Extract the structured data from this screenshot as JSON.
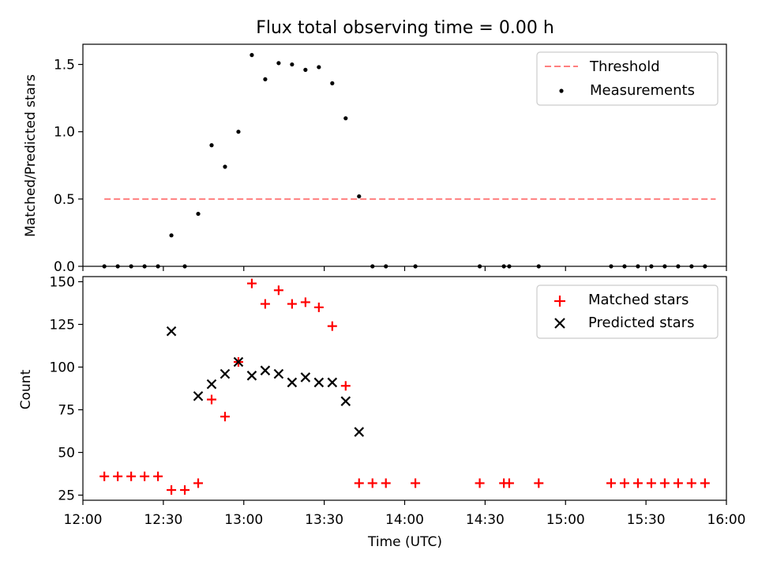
{
  "chart_data": [
    {
      "type": "scatter",
      "title": "Flux total observing time = 0.00 h",
      "xlabel": "",
      "ylabel": "Matched/Predicted stars",
      "xlim": [
        "12:00",
        "16:00"
      ],
      "ylim": [
        0,
        1.65
      ],
      "yticks": [
        "0.0",
        "0.5",
        "1.0",
        "1.5"
      ],
      "grid": false,
      "legend_position": "top-right",
      "series": [
        {
          "name": "Threshold",
          "kind": "line",
          "style": "dashed",
          "color": "#ff7f7f",
          "x": [
            "12:08",
            "15:56"
          ],
          "y": [
            0.5,
            0.5
          ]
        },
        {
          "name": "Measurements",
          "kind": "scatter",
          "marker": "dot",
          "color": "#000000",
          "x": [
            "12:08",
            "12:13",
            "12:18",
            "12:23",
            "12:28",
            "12:33",
            "12:38",
            "12:43",
            "12:48",
            "12:53",
            "12:58",
            "13:03",
            "13:08",
            "13:13",
            "13:18",
            "13:23",
            "13:28",
            "13:33",
            "13:38",
            "13:43",
            "13:48",
            "13:53",
            "14:04",
            "14:28",
            "14:37",
            "14:39",
            "14:50",
            "15:17",
            "15:22",
            "15:27",
            "15:32",
            "15:37",
            "15:42",
            "15:47",
            "15:52"
          ],
          "y": [
            0,
            0,
            0,
            0,
            0,
            0.23,
            0,
            0.39,
            0.9,
            0.74,
            1.0,
            1.57,
            1.39,
            1.51,
            1.5,
            1.46,
            1.48,
            1.36,
            1.1,
            0.52,
            0,
            0,
            0,
            0,
            0,
            0,
            0,
            0,
            0,
            0,
            0,
            0,
            0,
            0,
            0
          ]
        }
      ]
    },
    {
      "type": "scatter",
      "title": "",
      "xlabel": "Time (UTC)",
      "ylabel": "Count",
      "xlim": [
        "12:00",
        "16:00"
      ],
      "ylim": [
        22,
        153
      ],
      "xticks": [
        "12:00",
        "12:30",
        "13:00",
        "13:30",
        "14:00",
        "14:30",
        "15:00",
        "15:30",
        "16:00"
      ],
      "yticks": [
        "25",
        "50",
        "75",
        "100",
        "125",
        "150"
      ],
      "grid": false,
      "legend_position": "top-right",
      "series": [
        {
          "name": "Matched stars",
          "marker": "plus",
          "color": "#ff0000",
          "x": [
            "12:08",
            "12:13",
            "12:18",
            "12:23",
            "12:28",
            "12:33",
            "12:38",
            "12:43",
            "12:48",
            "12:53",
            "12:58",
            "13:03",
            "13:08",
            "13:13",
            "13:18",
            "13:23",
            "13:28",
            "13:33",
            "13:38",
            "13:43",
            "13:48",
            "13:53",
            "14:04",
            "14:28",
            "14:37",
            "14:39",
            "14:50",
            "15:17",
            "15:22",
            "15:27",
            "15:32",
            "15:37",
            "15:42",
            "15:47",
            "15:52"
          ],
          "y": [
            36,
            36,
            36,
            36,
            36,
            28,
            28,
            32,
            81,
            71,
            103,
            149,
            137,
            145,
            137,
            138,
            135,
            124,
            89,
            32,
            32,
            32,
            32,
            32,
            32,
            32,
            32,
            32,
            32,
            32,
            32,
            32,
            32,
            32,
            32
          ]
        },
        {
          "name": "Predicted stars",
          "marker": "x",
          "color": "#000000",
          "x": [
            "12:33",
            "12:43",
            "12:48",
            "12:53",
            "12:58",
            "13:03",
            "13:08",
            "13:13",
            "13:18",
            "13:23",
            "13:28",
            "13:33",
            "13:38",
            "13:43"
          ],
          "y": [
            121,
            83,
            90,
            96,
            103,
            95,
            98,
            96,
            91,
            94,
            91,
            91,
            80,
            62
          ]
        }
      ]
    }
  ]
}
